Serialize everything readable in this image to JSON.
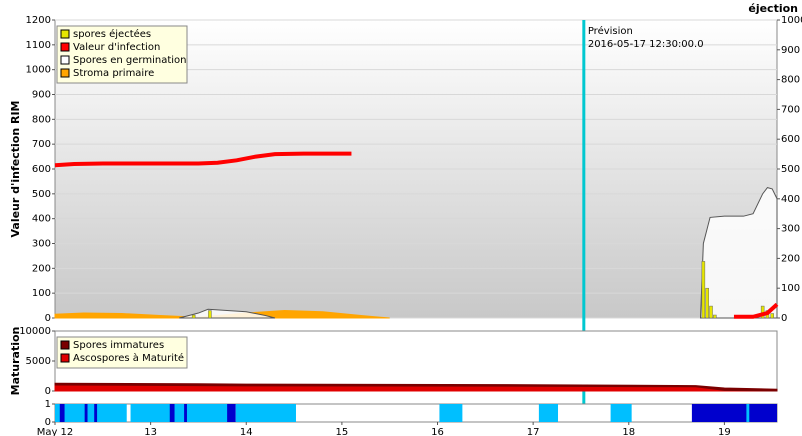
{
  "chart_data": [
    {
      "type": "combo",
      "ylabel": "Valeur d'infection RIM",
      "y2label": "éjection",
      "xlim": [
        12,
        19.55
      ],
      "ylim": [
        0,
        1200
      ],
      "yticks": [
        0,
        100,
        200,
        300,
        400,
        500,
        600,
        700,
        800,
        900,
        1000,
        1100,
        1200
      ],
      "y2lim": [
        0,
        1000
      ],
      "y2ticks": [
        0,
        100,
        200,
        300,
        400,
        500,
        600,
        700,
        800,
        900,
        1000
      ],
      "grid": true,
      "legend": "upper left",
      "annotation": [
        "Prévision",
        "2016-05-17 12:30:00.0"
      ],
      "forecast_x": 17.53,
      "series": [
        {
          "name": "spores éjectées",
          "color": "#e6e600",
          "kind": "bar",
          "axis": "y2",
          "x": [
            13.45,
            13.62,
            18.78,
            18.82,
            18.86,
            18.9,
            19.4,
            19.45,
            19.5
          ],
          "values": [
            10,
            25,
            190,
            100,
            40,
            10,
            40,
            25,
            15
          ]
        },
        {
          "name": "Valeur d'infection",
          "color": "#ff0000",
          "kind": "line",
          "x": [
            12,
            12.2,
            12.5,
            13,
            13.5,
            13.7,
            13.9,
            14.1,
            14.3,
            14.6,
            15.1,
            17,
            19.1,
            19.3,
            19.45,
            19.55
          ],
          "values": [
            615,
            620,
            622,
            622,
            622,
            625,
            635,
            650,
            660,
            662,
            662,
            null,
            5,
            5,
            20,
            55
          ]
        },
        {
          "name": "Spores en germination",
          "color": "#ffffff",
          "kind": "area",
          "x": [
            13.3,
            13.5,
            13.6,
            13.8,
            14.0,
            14.2,
            14.3,
            16,
            18.75,
            18.78,
            18.85,
            19.0,
            19.2,
            19.3,
            19.4,
            19.45,
            19.5,
            19.55
          ],
          "values": [
            0,
            20,
            35,
            30,
            25,
            10,
            0,
            null,
            0,
            300,
            405,
            410,
            410,
            420,
            500,
            525,
            520,
            480
          ]
        },
        {
          "name": "Stroma primaire",
          "color": "#ffa500",
          "kind": "area",
          "x": [
            12,
            12.3,
            12.7,
            13.1,
            13.5,
            14.0,
            14.4,
            14.8,
            15.2,
            15.5
          ],
          "values": [
            15,
            20,
            18,
            10,
            3,
            20,
            30,
            25,
            10,
            0
          ]
        }
      ]
    },
    {
      "type": "area",
      "ylabel": "Maturation",
      "xlim": [
        12,
        19.55
      ],
      "ylim": [
        0,
        10000
      ],
      "yticks": [
        0,
        5000,
        10000
      ],
      "legend": "upper left",
      "stacked": true,
      "series": [
        {
          "name": "Spores immatures",
          "color": "#7a0000",
          "x": [
            12,
            13.5,
            14,
            17,
            18.7,
            19,
            19.55
          ],
          "values": [
            300,
            300,
            300,
            250,
            200,
            400,
            300
          ]
        },
        {
          "name": "Ascospores à Maturité",
          "color": "#e00000",
          "x": [
            12,
            13.5,
            14,
            17,
            18.7,
            19,
            19.55
          ],
          "values": [
            1000,
            900,
            850,
            800,
            700,
            100,
            0
          ]
        }
      ]
    },
    {
      "type": "band",
      "xlim": [
        12,
        19.55
      ],
      "ylim": [
        0,
        1
      ],
      "yticks": [
        0,
        1
      ],
      "xticks": [
        {
          "value": 12,
          "label": "May 12"
        },
        13,
        14,
        15,
        16,
        17,
        18,
        19
      ],
      "segments": [
        {
          "x0": 12.0,
          "x1": 12.75,
          "value": 1,
          "color": "#00bfff"
        },
        {
          "x0": 12.05,
          "x1": 12.1,
          "value": 1,
          "color": "#0000cd"
        },
        {
          "x0": 12.31,
          "x1": 12.34,
          "value": 1,
          "color": "#0000cd"
        },
        {
          "x0": 12.41,
          "x1": 12.44,
          "value": 1,
          "color": "#0000cd"
        },
        {
          "x0": 12.79,
          "x1": 13.82,
          "value": 1,
          "color": "#00bfff"
        },
        {
          "x0": 13.2,
          "x1": 13.25,
          "value": 1,
          "color": "#0000cd"
        },
        {
          "x0": 13.35,
          "x1": 13.38,
          "value": 1,
          "color": "#0000cd"
        },
        {
          "x0": 13.8,
          "x1": 13.89,
          "value": 1,
          "color": "#0000cd"
        },
        {
          "x0": 13.89,
          "x1": 14.52,
          "value": 1,
          "color": "#00bfff"
        },
        {
          "x0": 16.02,
          "x1": 16.26,
          "value": 1,
          "color": "#00bfff"
        },
        {
          "x0": 17.06,
          "x1": 17.26,
          "value": 1,
          "color": "#00bfff"
        },
        {
          "x0": 17.81,
          "x1": 18.03,
          "value": 1,
          "color": "#00bfff"
        },
        {
          "x0": 18.66,
          "x1": 19.55,
          "value": 1,
          "color": "#0000cd"
        },
        {
          "x0": 19.23,
          "x1": 19.26,
          "value": 1,
          "color": "#00bfff"
        }
      ]
    }
  ]
}
